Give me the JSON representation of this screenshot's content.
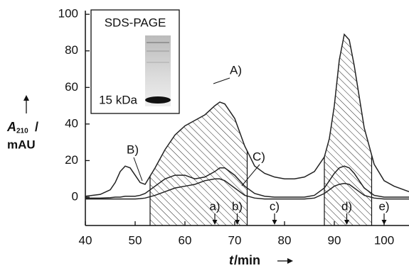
{
  "chart_data": {
    "type": "line",
    "x": [
      40,
      43,
      45,
      46,
      47,
      48,
      49,
      50,
      51,
      52,
      54,
      56,
      58,
      60,
      62,
      64,
      66,
      67,
      68,
      70,
      72,
      74,
      76,
      78,
      80,
      82,
      84,
      86,
      88,
      89,
      90,
      91,
      92,
      93,
      94,
      95,
      96,
      98,
      100,
      102,
      105
    ],
    "series": [
      {
        "name": "A)",
        "color": "#222222",
        "values": [
          0.5,
          1.5,
          4,
          8,
          14,
          17,
          16,
          12,
          8,
          7,
          16,
          26,
          34,
          39,
          42,
          45,
          50,
          52,
          51,
          43,
          28,
          17,
          13,
          11,
          10,
          10,
          11,
          14,
          22,
          32,
          50,
          75,
          89,
          86,
          72,
          55,
          38,
          18,
          9,
          6,
          3
        ]
      },
      {
        "name": "B)",
        "color": "#222222",
        "values": [
          -0.5,
          -0.5,
          -0.3,
          0,
          0,
          0.5,
          0.5,
          0.5,
          1,
          2,
          6,
          10,
          12,
          12,
          10,
          11,
          14,
          16,
          16,
          12,
          6,
          2,
          0.5,
          0,
          0,
          0,
          0,
          1,
          5,
          9,
          13,
          16,
          17,
          16,
          13,
          9,
          5,
          1,
          0,
          0,
          0
        ]
      },
      {
        "name": "C)",
        "color": "#222222",
        "values": [
          -1,
          -1,
          -1,
          -1,
          -1,
          -1,
          -1,
          -1,
          -0.8,
          -0.5,
          1,
          3,
          5,
          6,
          7,
          9,
          10,
          10,
          9,
          5,
          1,
          -0.5,
          -1,
          -1,
          -1,
          -1,
          -1,
          -0.5,
          2,
          4,
          6,
          7,
          7.5,
          7,
          5,
          3,
          1,
          -0.5,
          -1,
          -1,
          -1
        ]
      }
    ],
    "shaded_ranges": [
      [
        53,
        72.5
      ],
      [
        88,
        97.5
      ]
    ],
    "markers": [
      {
        "label": "a)",
        "x": 66
      },
      {
        "label": "b)",
        "x": 70.5
      },
      {
        "label": "c)",
        "x": 78
      },
      {
        "label": "d)",
        "x": 92.5
      },
      {
        "label": "e)",
        "x": 100
      }
    ],
    "xlim": [
      40,
      105
    ],
    "ylim": [
      -15.5,
      102
    ],
    "xticks": [
      40,
      50,
      60,
      70,
      80,
      90,
      100
    ],
    "yticks": [
      0,
      20,
      40,
      60,
      80,
      100
    ],
    "ylabel": {
      "symbol": "A",
      "subscript": "210",
      "separator": "/",
      "unit": "mAU"
    },
    "xlabel": {
      "symbol": "t",
      "unit": "/min"
    },
    "inset": {
      "title": "SDS-PAGE",
      "band_label": "15 kDa"
    }
  }
}
